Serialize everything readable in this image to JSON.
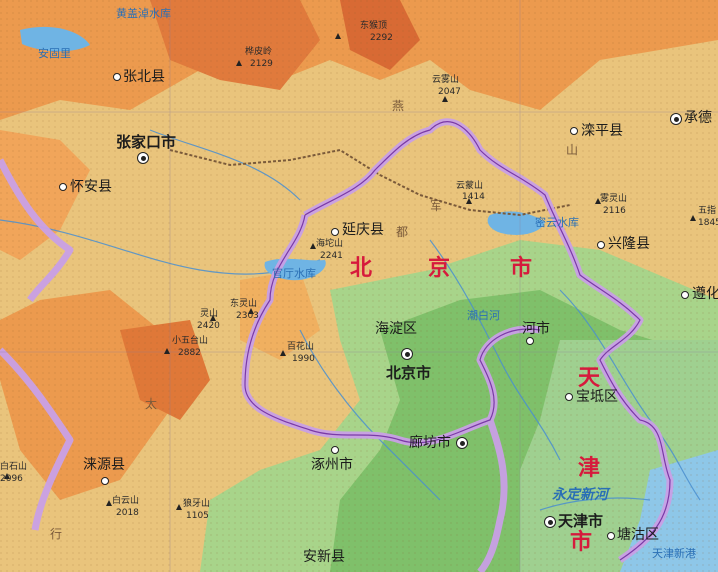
{
  "cities": {
    "zhangbei": "张北县",
    "chengde": "承德",
    "luanping": "滦平县",
    "zhangjiakou": "张家口市",
    "huaian": "怀安县",
    "yanqing": "延庆县",
    "xinglong": "兴隆县",
    "zunhua": "遵化",
    "haidian": "海淀区",
    "beijing": "北京市",
    "sanhe": "河市",
    "baodi": "宝坻区",
    "langfang": "廊坊市",
    "zhuozhou": "涿州市",
    "laiyuan": "涞源县",
    "tianjin": "天津市",
    "tanggu": "塘沽区",
    "anxin": "安新县"
  },
  "regions": {
    "bei": "北",
    "jing": "京",
    "shi": "市",
    "tian": "天",
    "jin": "津",
    "shi2": "市"
  },
  "peaks": {
    "dongmeng": [
      "东猴顶",
      "2292"
    ],
    "huaqi": [
      "桦皮岭",
      "2129"
    ],
    "yunwu": [
      "云雾山",
      "2047"
    ],
    "wuling": [
      "雾灵山",
      "2116"
    ],
    "yunmeng": [
      "云蒙山",
      "1414"
    ],
    "haituo": [
      "海坨山",
      "2241"
    ],
    "lingshan": [
      "灵山",
      "2420"
    ],
    "dongling": [
      "东灵山",
      "2303"
    ],
    "xiaowutai": [
      "小五台山",
      "2882"
    ],
    "baihua": [
      "百花山",
      "1990"
    ],
    "baishi": [
      "白石山",
      "2096"
    ],
    "langya": [
      "狼牙山",
      "1105"
    ],
    "baiyun": [
      "白云山",
      "2018"
    ],
    "wuzhi": [
      "五指",
      "1845"
    ]
  },
  "waters": {
    "huanggai": "黄盖淖水库",
    "anguli": "安固里",
    "miyun": "密云水库",
    "guanting": "官厅水库",
    "chaobai": "潮白河",
    "yongding_xin": "永定新河",
    "bohai": "天津新港"
  },
  "ranges": {
    "yan": "燕",
    "shan": "山",
    "tai": "太",
    "hang": "行",
    "jun": "军",
    "du": "都"
  }
}
